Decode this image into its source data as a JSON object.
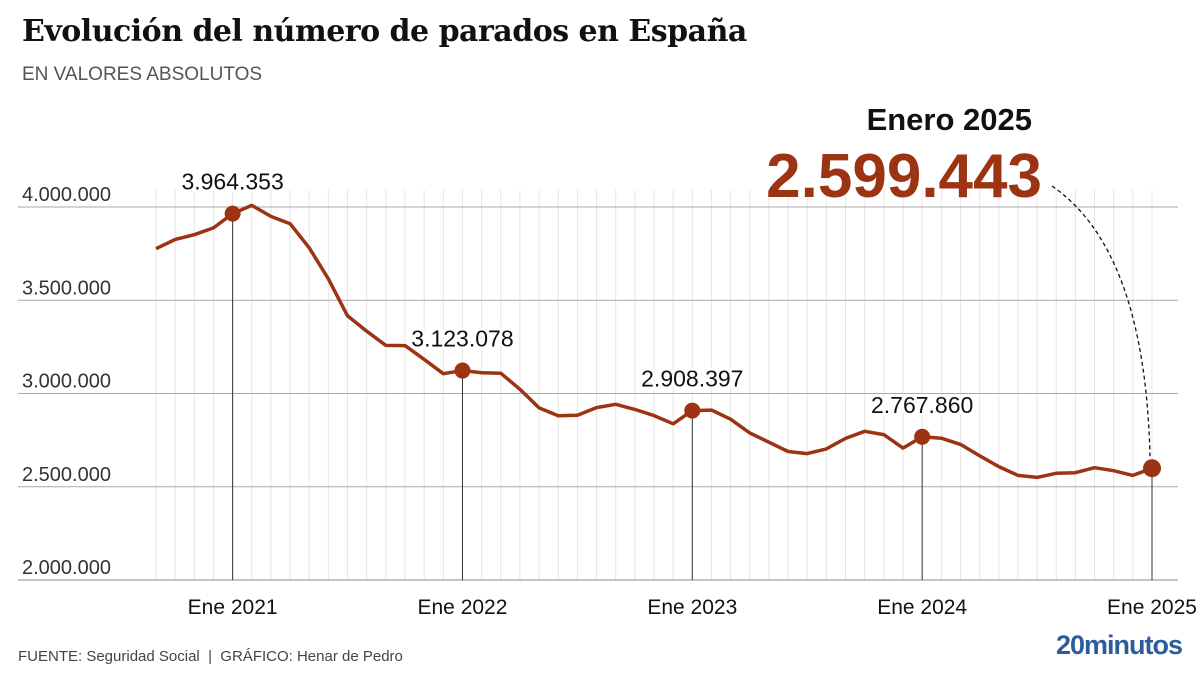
{
  "header": {
    "title": "Evolución del número de parados en España",
    "subtitle": "EN VALORES ABSOLUTOS"
  },
  "footer": {
    "source": "FUENTE: Seguridad Social  |  GRÁFICO: Henar de Pedro",
    "logo": "20minutos"
  },
  "chart_data": {
    "type": "line",
    "title": "Evolución del número de parados en España",
    "subtitle": "EN VALORES ABSOLUTOS",
    "x_start": "2020-09",
    "x_frequency": "monthly",
    "ylim": [
      2000000,
      4000000
    ],
    "y_ticks": [
      {
        "v": 2000000,
        "label": "2.000.000"
      },
      {
        "v": 2500000,
        "label": "2.500.000"
      },
      {
        "v": 3000000,
        "label": "3.000.000"
      },
      {
        "v": 3500000,
        "label": "3.500.000"
      },
      {
        "v": 4000000,
        "label": "4.000.000"
      }
    ],
    "x_ticks": [
      {
        "i": 4,
        "label": "Ene 2021"
      },
      {
        "i": 16,
        "label": "Ene 2022"
      },
      {
        "i": 28,
        "label": "Ene 2023"
      },
      {
        "i": 40,
        "label": "Ene 2024"
      },
      {
        "i": 52,
        "label": "Ene 2025"
      }
    ],
    "grid": true,
    "line_color": "#9c3313",
    "values": [
      3776485,
      3826043,
      3851312,
      3888137,
      3964353,
      4008789,
      3949640,
      3910628,
      3781250,
      3614339,
      3416498,
      3333915,
      3257802,
      3257068,
      3182687,
      3105905,
      3123078,
      3111684,
      3108763,
      3022503,
      2922991,
      2880582,
      2883812,
      2924240,
      2941919,
      2914892,
      2881380,
      2837653,
      2908397,
      2911015,
      2862260,
      2788370,
      2739110,
      2688842,
      2677874,
      2702700,
      2759404,
      2797510,
      2779474,
      2707456,
      2767860,
      2760408,
      2727003,
      2666500,
      2607850,
      2561067,
      2550237,
      2572121,
      2575285,
      2602054,
      2586018,
      2560718,
      2599443
    ],
    "annotations": [
      {
        "i": 4,
        "label": "3.964.353"
      },
      {
        "i": 16,
        "label": "3.123.078"
      },
      {
        "i": 28,
        "label": "2.908.397"
      },
      {
        "i": 40,
        "label": "2.767.860"
      }
    ],
    "callout": {
      "period": "Enero 2025",
      "value": "2.599.443",
      "i": 52
    }
  }
}
